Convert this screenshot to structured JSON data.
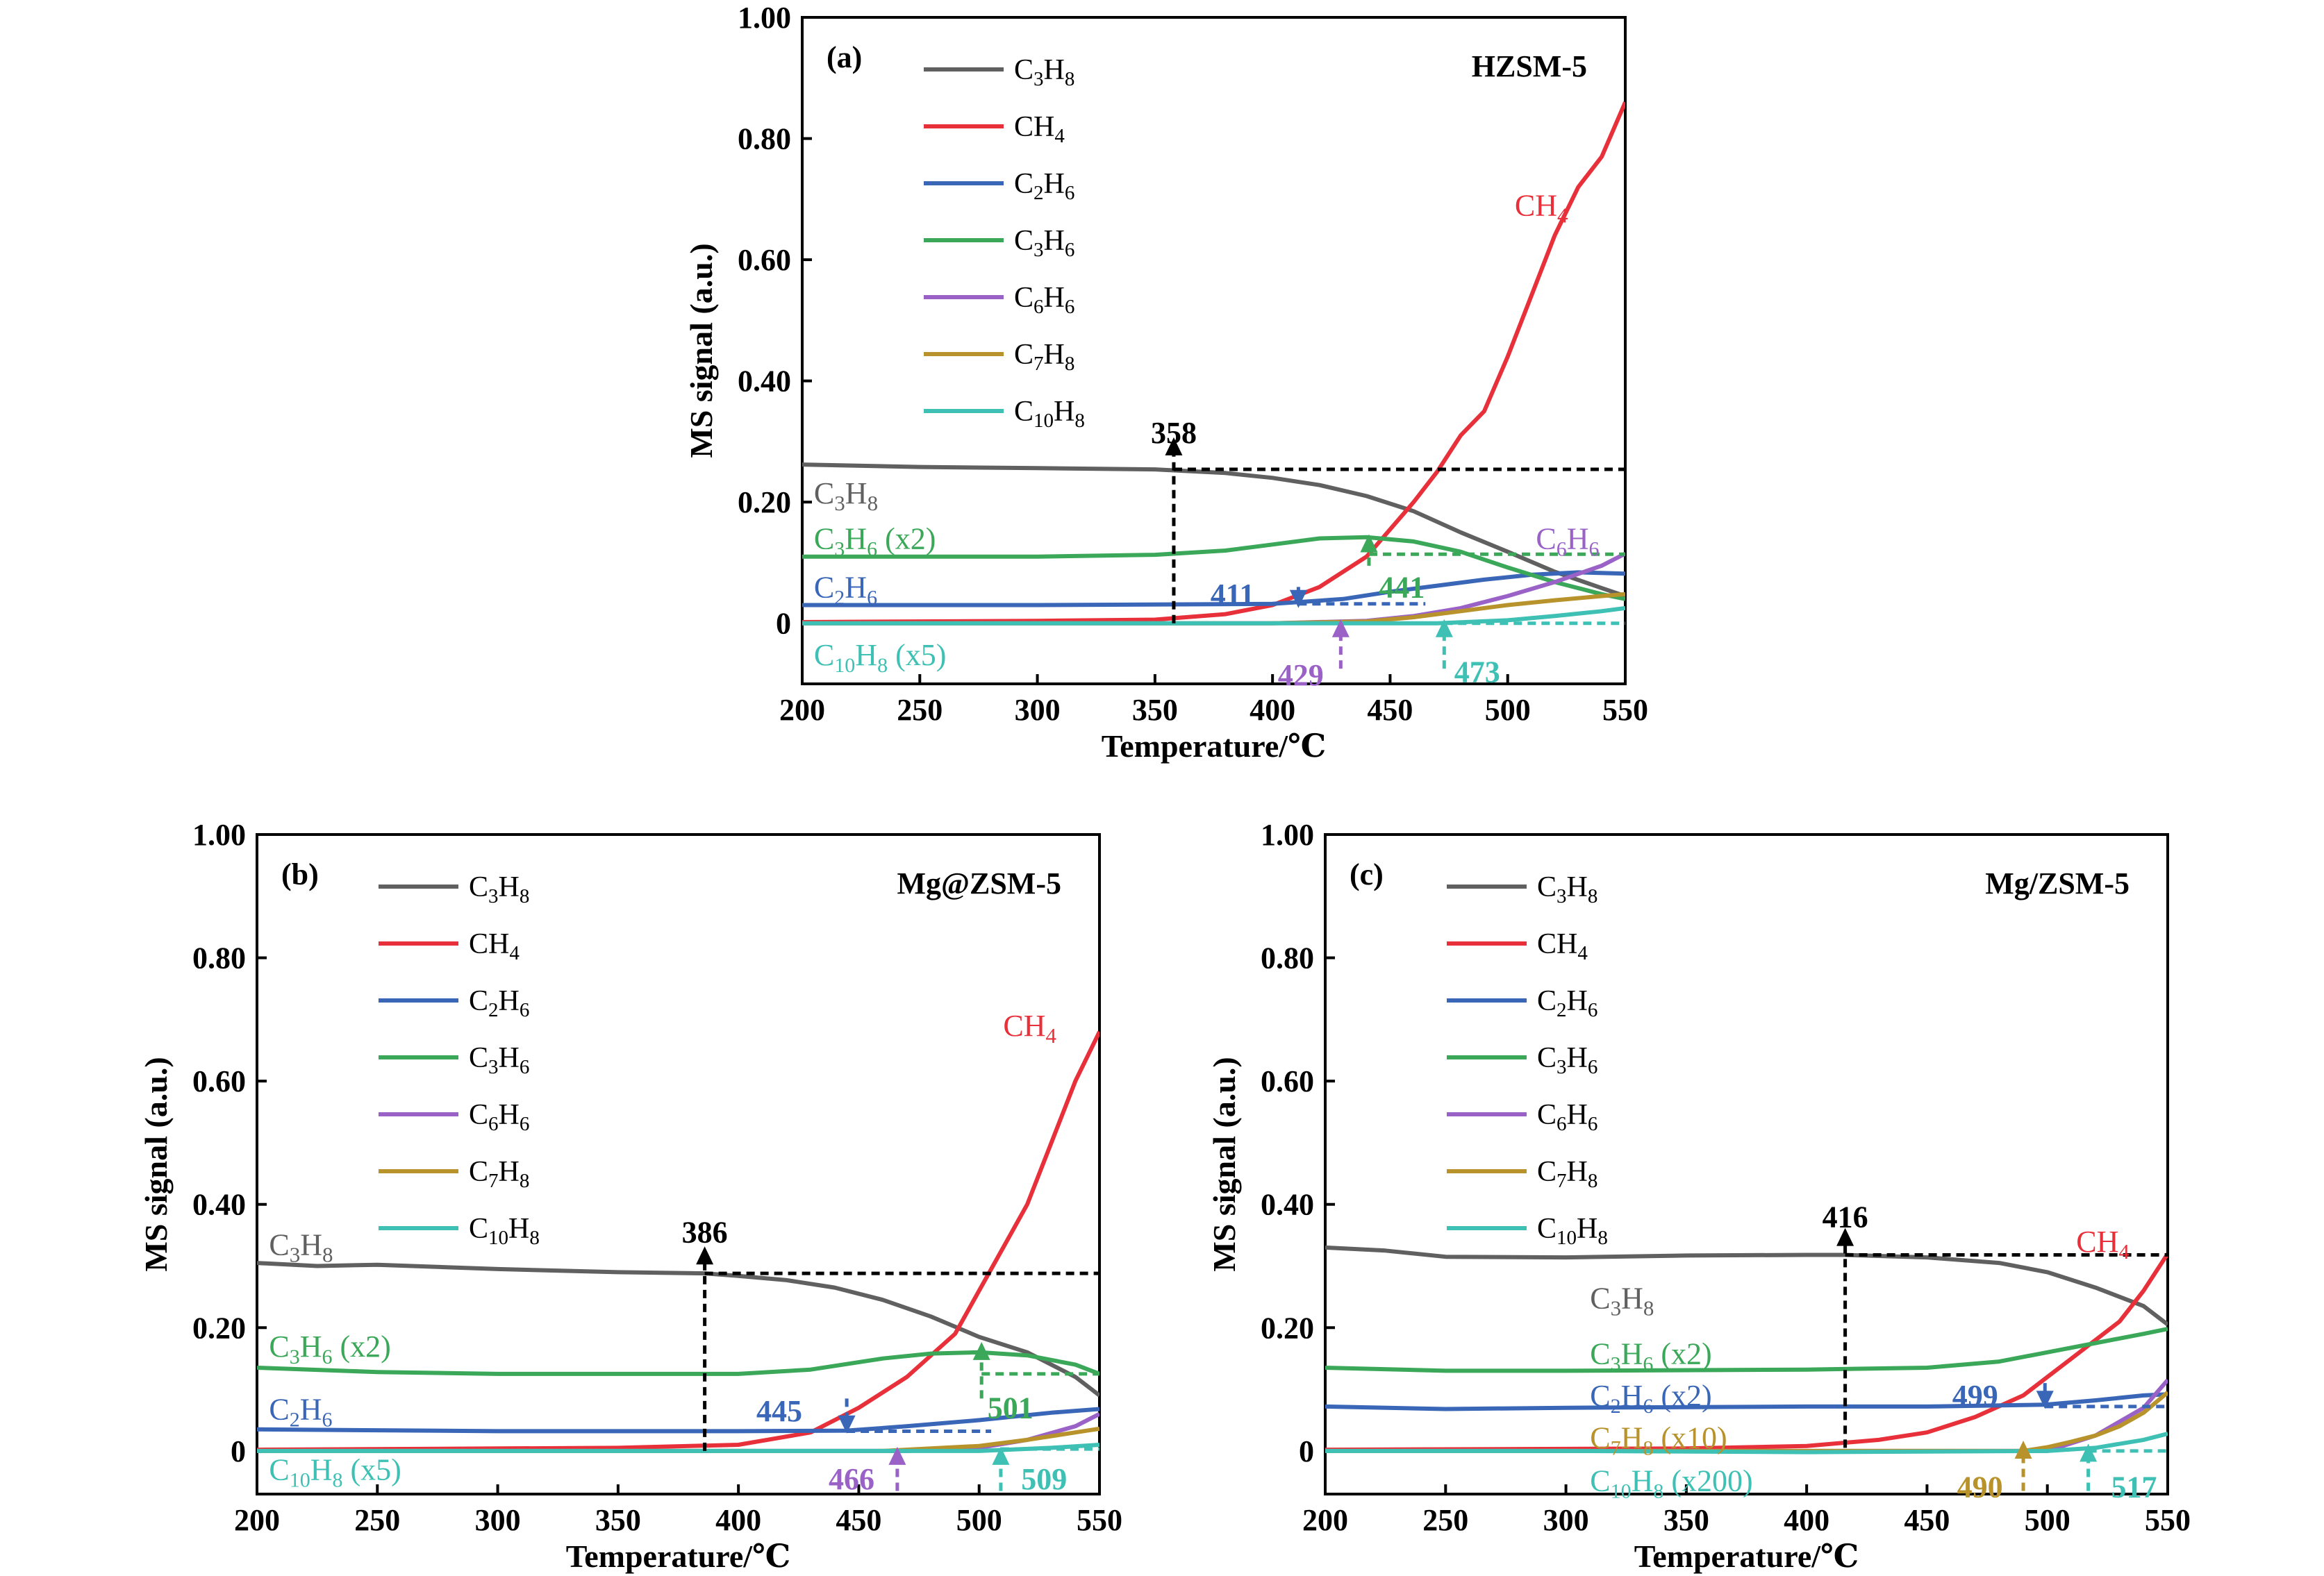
{
  "figure": {
    "y_axis_label": "MS signal (a.u.)",
    "x_axis_label": "Temperature/℃",
    "y_tick_labels": [
      "0",
      "0.20",
      "0.40",
      "0.60",
      "0.80",
      "1.00"
    ],
    "x_tick_labels": [
      "200",
      "250",
      "300",
      "350",
      "400",
      "450",
      "500",
      "550"
    ],
    "legend": [
      {
        "name": "C3H8",
        "base": "C",
        "n1": "3",
        "mid": "H",
        "n2": "8",
        "color": "#606060"
      },
      {
        "name": "CH4",
        "base": "CH",
        "n1": "4",
        "mid": "",
        "n2": "",
        "color": "#e8303a"
      },
      {
        "name": "C2H6",
        "base": "C",
        "n1": "2",
        "mid": "H",
        "n2": "6",
        "color": "#3a66b8"
      },
      {
        "name": "C3H6",
        "base": "C",
        "n1": "3",
        "mid": "H",
        "n2": "6",
        "color": "#3aa858"
      },
      {
        "name": "C6H6",
        "base": "C",
        "n1": "6",
        "mid": "H",
        "n2": "6",
        "color": "#9a62c6"
      },
      {
        "name": "C7H8",
        "base": "C",
        "n1": "7",
        "mid": "H",
        "n2": "8",
        "color": "#b8922a"
      },
      {
        "name": "C10H8",
        "base": "C",
        "n1": "10",
        "mid": "H",
        "n2": "8",
        "color": "#3ec0b4"
      }
    ]
  },
  "chart_data": [
    {
      "type": "line",
      "panel_label": "(a)",
      "catalyst": "HZSM-5",
      "xlim": [
        200,
        550
      ],
      "ylim": [
        -0.1,
        1.0
      ],
      "xlabel": "Temperature/℃",
      "ylabel": "MS signal (a.u.)",
      "legend_position": "top-left",
      "series": [
        {
          "name": "C3H8",
          "color": "#606060",
          "x": [
            200,
            250,
            300,
            350,
            380,
            400,
            420,
            440,
            460,
            480,
            500,
            520,
            540,
            550
          ],
          "y": [
            0.262,
            0.258,
            0.256,
            0.254,
            0.248,
            0.24,
            0.228,
            0.21,
            0.185,
            0.15,
            0.118,
            0.085,
            0.058,
            0.045
          ]
        },
        {
          "name": "CH4",
          "color": "#e8303a",
          "x": [
            200,
            300,
            350,
            380,
            400,
            420,
            440,
            460,
            470,
            480,
            490,
            500,
            510,
            520,
            530,
            540,
            550
          ],
          "y": [
            0.002,
            0.004,
            0.006,
            0.015,
            0.03,
            0.06,
            0.11,
            0.2,
            0.25,
            0.31,
            0.35,
            0.44,
            0.54,
            0.64,
            0.72,
            0.77,
            0.86
          ]
        },
        {
          "name": "C2H6",
          "color": "#3a66b8",
          "x": [
            200,
            300,
            400,
            430,
            450,
            470,
            490,
            510,
            530,
            550
          ],
          "y": [
            0.03,
            0.03,
            0.032,
            0.04,
            0.052,
            0.062,
            0.072,
            0.08,
            0.084,
            0.082
          ]
        },
        {
          "name": "C3H6",
          "color": "#3aa858",
          "x": [
            200,
            300,
            350,
            380,
            400,
            420,
            440,
            460,
            480,
            500,
            520,
            540,
            550
          ],
          "y": [
            0.11,
            0.11,
            0.113,
            0.12,
            0.13,
            0.14,
            0.142,
            0.135,
            0.118,
            0.092,
            0.068,
            0.048,
            0.04
          ]
        },
        {
          "name": "C6H6",
          "color": "#9a62c6",
          "x": [
            200,
            400,
            440,
            460,
            480,
            500,
            520,
            540,
            550
          ],
          "y": [
            0.0,
            0.0,
            0.004,
            0.012,
            0.025,
            0.045,
            0.068,
            0.095,
            0.115
          ]
        },
        {
          "name": "C7H8",
          "color": "#b8922a",
          "x": [
            200,
            400,
            440,
            460,
            480,
            500,
            520,
            540,
            550
          ],
          "y": [
            0.0,
            0.0,
            0.003,
            0.01,
            0.02,
            0.03,
            0.038,
            0.045,
            0.048
          ]
        },
        {
          "name": "C10H8",
          "color": "#3ec0b4",
          "x": [
            200,
            470,
            500,
            520,
            540,
            550
          ],
          "y": [
            0.0,
            0.0,
            0.005,
            0.012,
            0.02,
            0.025
          ]
        }
      ],
      "series_labels": [
        {
          "text": "C3H8",
          "series": "C3H8",
          "color": "#606060",
          "x": 205,
          "y": 0.215,
          "fs": 46
        },
        {
          "text": "C3H6 (x2)",
          "series": "C3H6",
          "color": "#3aa858",
          "x": 205,
          "y": 0.14,
          "fs": 44
        },
        {
          "text": "C2H6",
          "series": "C2H6",
          "color": "#3a66b8",
          "x": 205,
          "y": 0.06,
          "fs": 44
        },
        {
          "text": "C10H8 (x5)",
          "series": "C10H8",
          "color": "#3ec0b4",
          "x": 205,
          "y": -0.052,
          "fs": 44
        },
        {
          "text": "CH4",
          "series": "CH4",
          "color": "#e8303a",
          "x": 503,
          "y": 0.69,
          "fs": 46
        },
        {
          "text": "C6H6",
          "series": "C6H6",
          "color": "#9a62c6",
          "x": 512,
          "y": 0.14,
          "fs": 44
        }
      ],
      "annotations": [
        {
          "value": "358",
          "color": "#000000",
          "x": 358,
          "y_from": 0.0,
          "y_to": 0.3,
          "dir": "up",
          "label_x": 358,
          "label_y": 0.315,
          "line_y": 0.254,
          "line_to": 550
        },
        {
          "value": "411",
          "color": "#3a66b8",
          "x": 411,
          "y_from": 0.06,
          "y_to": 0.032,
          "dir": "down",
          "label_x": 383,
          "label_y": 0.048,
          "line_y": 0.032,
          "line_to": 465
        },
        {
          "value": "441",
          "color": "#3aa858",
          "x": 441,
          "y_from": 0.095,
          "y_to": 0.14,
          "dir": "up",
          "label_x": 455,
          "label_y": 0.06,
          "line_y": 0.114,
          "line_to": 550
        },
        {
          "value": "429",
          "color": "#9a62c6",
          "x": 429,
          "y_from": -0.075,
          "y_to": 0.0,
          "dir": "up",
          "label_x": 412,
          "label_y": -0.085,
          "line_y": null,
          "line_to": null
        },
        {
          "value": "473",
          "color": "#3ec0b4",
          "x": 473,
          "y_from": -0.075,
          "y_to": 0.0,
          "dir": "up",
          "label_x": 487,
          "label_y": -0.08,
          "line_y": 0.0,
          "line_to": 550
        }
      ]
    },
    {
      "type": "line",
      "panel_label": "(b)",
      "catalyst": "Mg@ZSM-5",
      "xlim": [
        200,
        550
      ],
      "ylim": [
        -0.07,
        1.0
      ],
      "xlabel": "Temperature/℃",
      "ylabel": "MS signal (a.u.)",
      "legend_position": "top-left",
      "series": [
        {
          "name": "C3H8",
          "color": "#606060",
          "x": [
            200,
            225,
            250,
            300,
            350,
            386,
            400,
            420,
            440,
            460,
            480,
            500,
            520,
            540,
            550
          ],
          "y": [
            0.305,
            0.3,
            0.302,
            0.295,
            0.29,
            0.288,
            0.284,
            0.277,
            0.265,
            0.245,
            0.218,
            0.185,
            0.16,
            0.12,
            0.09
          ]
        },
        {
          "name": "CH4",
          "color": "#e8303a",
          "x": [
            200,
            350,
            400,
            430,
            450,
            470,
            490,
            500,
            510,
            520,
            530,
            540,
            550
          ],
          "y": [
            0.002,
            0.005,
            0.01,
            0.03,
            0.07,
            0.12,
            0.19,
            0.26,
            0.33,
            0.4,
            0.5,
            0.6,
            0.68
          ]
        },
        {
          "name": "C2H6",
          "color": "#3a66b8",
          "x": [
            200,
            300,
            400,
            445,
            470,
            500,
            530,
            550
          ],
          "y": [
            0.035,
            0.032,
            0.032,
            0.033,
            0.04,
            0.05,
            0.062,
            0.068
          ]
        },
        {
          "name": "C3H6",
          "color": "#3aa858",
          "x": [
            200,
            250,
            300,
            350,
            400,
            430,
            460,
            480,
            500,
            520,
            540,
            550
          ],
          "y": [
            0.135,
            0.128,
            0.125,
            0.125,
            0.125,
            0.132,
            0.15,
            0.158,
            0.16,
            0.155,
            0.14,
            0.125
          ]
        },
        {
          "name": "C6H6",
          "color": "#9a62c6",
          "x": [
            200,
            470,
            500,
            520,
            540,
            550
          ],
          "y": [
            0.0,
            0.0,
            0.005,
            0.018,
            0.04,
            0.06
          ]
        },
        {
          "name": "C7H8",
          "color": "#b8922a",
          "x": [
            200,
            460,
            500,
            520,
            540,
            550
          ],
          "y": [
            0.0,
            0.0,
            0.008,
            0.018,
            0.03,
            0.036
          ]
        },
        {
          "name": "C10H8",
          "color": "#3ec0b4",
          "x": [
            200,
            500,
            530,
            550
          ],
          "y": [
            0.0,
            0.0,
            0.005,
            0.01
          ]
        }
      ],
      "series_labels": [
        {
          "text": "C3H8",
          "series": "C3H8",
          "color": "#606060",
          "x": 205,
          "y": 0.335,
          "fs": 46
        },
        {
          "text": "C3H6 (x2)",
          "series": "C3H6",
          "color": "#3aa858",
          "x": 205,
          "y": 0.17,
          "fs": 44
        },
        {
          "text": "C2H6",
          "series": "C2H6",
          "color": "#3a66b8",
          "x": 205,
          "y": 0.068,
          "fs": 44
        },
        {
          "text": "C10H8 (x5)",
          "series": "C10H8",
          "color": "#3ec0b4",
          "x": 205,
          "y": -0.03,
          "fs": 44
        },
        {
          "text": "CH4",
          "series": "CH4",
          "color": "#e8303a",
          "x": 510,
          "y": 0.69,
          "fs": 46
        }
      ],
      "annotations": [
        {
          "value": "386",
          "color": "#000000",
          "x": 386,
          "y_from": 0.0,
          "y_to": 0.325,
          "dir": "up",
          "label_x": 386,
          "label_y": 0.355,
          "line_y": 0.288,
          "line_to": 550
        },
        {
          "value": "445",
          "color": "#3a66b8",
          "x": 445,
          "y_from": 0.085,
          "y_to": 0.035,
          "dir": "down",
          "label_x": 417,
          "label_y": 0.065,
          "line_y": 0.032,
          "line_to": 505
        },
        {
          "value": "501",
          "color": "#3aa858",
          "x": 501,
          "y_from": 0.085,
          "y_to": 0.17,
          "dir": "up",
          "label_x": 513,
          "label_y": 0.07,
          "line_y": 0.125,
          "line_to": 550
        },
        {
          "value": "466",
          "color": "#9a62c6",
          "x": 466,
          "y_from": -0.065,
          "y_to": 0.0,
          "dir": "up",
          "label_x": 447,
          "label_y": -0.045,
          "line_y": null,
          "line_to": null
        },
        {
          "value": "509",
          "color": "#3ec0b4",
          "x": 509,
          "y_from": -0.065,
          "y_to": 0.0,
          "dir": "up",
          "label_x": 527,
          "label_y": -0.045,
          "line_y": 0.003,
          "line_to": 550
        }
      ]
    },
    {
      "type": "line",
      "panel_label": "(c)",
      "catalyst": "Mg/ZSM-5",
      "xlim": [
        200,
        550
      ],
      "ylim": [
        -0.07,
        1.0
      ],
      "xlabel": "Temperature/℃",
      "ylabel": "MS signal (a.u.)",
      "legend_position": "top-left",
      "series": [
        {
          "name": "C3H8",
          "color": "#606060",
          "x": [
            200,
            225,
            250,
            300,
            350,
            400,
            416,
            450,
            480,
            500,
            520,
            540,
            550
          ],
          "y": [
            0.33,
            0.325,
            0.315,
            0.314,
            0.317,
            0.318,
            0.318,
            0.314,
            0.305,
            0.29,
            0.265,
            0.235,
            0.205
          ]
        },
        {
          "name": "CH4",
          "color": "#e8303a",
          "x": [
            200,
            350,
            400,
            430,
            450,
            470,
            490,
            510,
            530,
            540,
            550
          ],
          "y": [
            0.002,
            0.004,
            0.008,
            0.018,
            0.03,
            0.055,
            0.09,
            0.15,
            0.21,
            0.26,
            0.32
          ]
        },
        {
          "name": "C2H6",
          "color": "#3a66b8",
          "x": [
            200,
            250,
            300,
            400,
            450,
            499,
            520,
            540,
            550
          ],
          "y": [
            0.072,
            0.068,
            0.07,
            0.072,
            0.072,
            0.075,
            0.082,
            0.09,
            0.092
          ]
        },
        {
          "name": "C3H6",
          "color": "#3aa858",
          "x": [
            200,
            250,
            300,
            400,
            450,
            480,
            500,
            520,
            540,
            550
          ],
          "y": [
            0.135,
            0.13,
            0.13,
            0.132,
            0.135,
            0.145,
            0.16,
            0.175,
            0.19,
            0.198
          ]
        },
        {
          "name": "C6H6",
          "color": "#9a62c6",
          "x": [
            200,
            500,
            520,
            540,
            550
          ],
          "y": [
            0.0,
            0.0,
            0.025,
            0.07,
            0.115
          ]
        },
        {
          "name": "C7H8",
          "color": "#b8922a",
          "x": [
            200,
            490,
            500,
            510,
            520,
            530,
            540,
            550
          ],
          "y": [
            0.0,
            0.0,
            0.006,
            0.015,
            0.025,
            0.04,
            0.062,
            0.095
          ]
        },
        {
          "name": "C10H8",
          "color": "#3ec0b4",
          "x": [
            200,
            300,
            400,
            500,
            520,
            540,
            550
          ],
          "y": [
            0.0,
            0.0,
            -0.002,
            0.0,
            0.005,
            0.018,
            0.028
          ]
        }
      ],
      "series_labels": [
        {
          "text": "C3H8",
          "series": "C3H8",
          "color": "#606060",
          "x": 310,
          "y": 0.248,
          "fs": 46
        },
        {
          "text": "CH4",
          "series": "CH4",
          "color": "#e8303a",
          "x": 512,
          "y": 0.34,
          "fs": 46
        },
        {
          "text": "C3H6 (x2)",
          "series": "C3H6",
          "color": "#3aa858",
          "x": 310,
          "y": 0.158,
          "fs": 44
        },
        {
          "text": "C2H6 (x2)",
          "series": "C2H6",
          "color": "#3a66b8",
          "x": 310,
          "y": 0.09,
          "fs": 44
        },
        {
          "text": "C7H8 (x10)",
          "series": "C7H8",
          "color": "#b8922a",
          "x": 310,
          "y": 0.022,
          "fs": 44
        },
        {
          "text": "C10H8 (x200)",
          "series": "C10H8",
          "color": "#3ec0b4",
          "x": 310,
          "y": -0.048,
          "fs": 44
        }
      ],
      "annotations": [
        {
          "value": "416",
          "color": "#000000",
          "x": 416,
          "y_from": 0.005,
          "y_to": 0.355,
          "dir": "up",
          "label_x": 416,
          "label_y": 0.38,
          "line_y": 0.318,
          "line_to": 550
        },
        {
          "value": "499",
          "color": "#3a66b8",
          "x": 499,
          "y_from": 0.11,
          "y_to": 0.075,
          "dir": "down",
          "label_x": 470,
          "label_y": 0.09,
          "line_y": 0.072,
          "line_to": 550
        },
        {
          "value": "490",
          "color": "#b8922a",
          "x": 490,
          "y_from": -0.065,
          "y_to": 0.01,
          "dir": "up",
          "label_x": 472,
          "label_y": -0.058,
          "line_y": null,
          "line_to": null
        },
        {
          "value": "517",
          "color": "#3ec0b4",
          "x": 517,
          "y_from": -0.065,
          "y_to": 0.005,
          "dir": "up",
          "label_x": 536,
          "label_y": -0.058,
          "line_y": 0.0,
          "line_to": 550
        }
      ]
    }
  ]
}
